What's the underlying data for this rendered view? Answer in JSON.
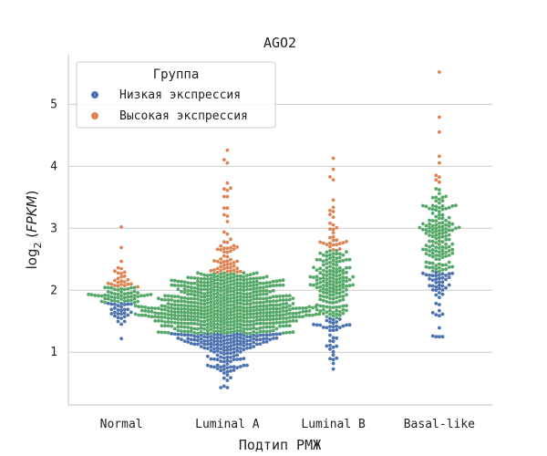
{
  "chart_data": {
    "type": "swarm",
    "title": "AGO2",
    "xlabel": "Подтип РМЖ",
    "ylabel_prefix": "log",
    "ylabel_sub": "2",
    "ylabel_var": "FPKM",
    "categories": [
      "Normal",
      "Luminal A",
      "Luminal B",
      "Basal-like"
    ],
    "ylim": [
      0.15,
      5.8
    ],
    "yticks": [
      1,
      2,
      3,
      4,
      5
    ],
    "grid": "horizontal",
    "legend": {
      "title": "Группа",
      "placement": "top-left",
      "entries": [
        {
          "label": "Низкая экспрессия",
          "color": "#4c72b0"
        },
        {
          "label": "Высокая экспрессия",
          "color": "#dd8452"
        }
      ]
    },
    "mid_color": "#55a868",
    "groups": [
      {
        "category": "Normal",
        "n": 110,
        "min": 1.22,
        "low_threshold": 1.8,
        "high_threshold": 2.05,
        "max": 3.02,
        "center": 1.95,
        "spread": 0.22
      },
      {
        "category": "Luminal A",
        "n": 880,
        "min": 0.43,
        "low_threshold": 1.3,
        "high_threshold": 2.28,
        "max": 4.26,
        "center": 1.65,
        "spread": 0.42
      },
      {
        "category": "Luminal B",
        "n": 230,
        "min": 0.73,
        "low_threshold": 1.55,
        "high_threshold": 2.65,
        "max": 4.13,
        "center": 2.05,
        "spread": 0.55
      },
      {
        "category": "Basal-like",
        "n": 195,
        "min": 1.25,
        "low_threshold": 2.3,
        "high_threshold": 3.7,
        "max": 5.52,
        "center": 2.75,
        "spread": 0.6
      }
    ]
  }
}
